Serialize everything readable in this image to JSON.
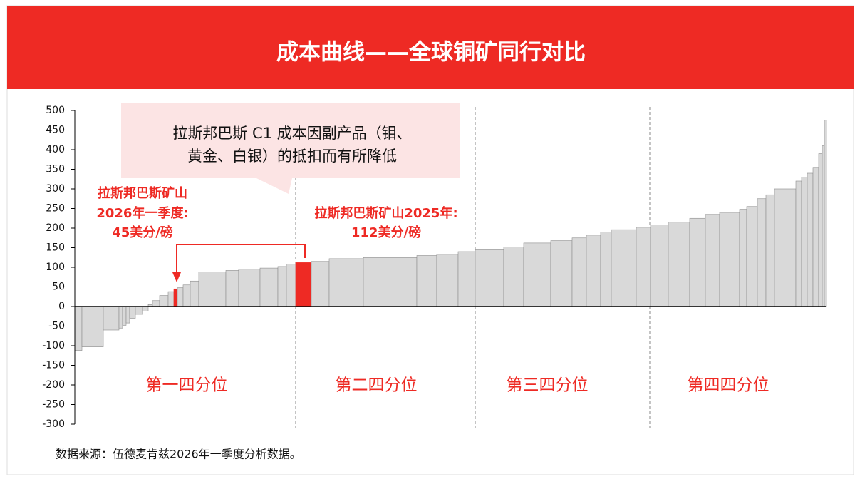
{
  "chart_data": {
    "type": "cost_curve",
    "title": "成本曲线——全球铜矿同行对比",
    "values": [
      -112,
      -103,
      -60,
      -55,
      -48,
      -42,
      -30,
      -20,
      -12,
      5,
      15,
      28,
      38,
      45,
      48,
      55,
      65,
      88,
      92,
      95,
      98,
      102,
      108,
      112,
      115,
      122,
      125,
      130,
      133,
      140,
      145,
      152,
      162,
      168,
      175,
      182,
      190,
      196,
      202,
      208,
      215,
      225,
      235,
      240,
      248,
      255,
      275,
      285,
      300,
      320,
      330,
      340,
      355,
      390,
      410,
      475
    ],
    "widths": [
      10,
      30,
      22,
      5,
      5,
      5,
      8,
      10,
      8,
      6,
      10,
      12,
      8,
      5,
      8,
      10,
      12,
      38,
      18,
      30,
      25,
      12,
      13,
      22,
      25,
      48,
      75,
      28,
      30,
      24,
      40,
      28,
      38,
      30,
      20,
      20,
      15,
      35,
      20,
      25,
      30,
      22,
      20,
      28,
      10,
      15,
      12,
      12,
      30,
      8,
      8,
      8,
      8,
      5,
      3,
      3
    ],
    "color": "#d9d9d9",
    "highlight": [
      13,
      23
    ],
    "highlight_color": "#ee2a24",
    "ylim": [
      -300,
      500
    ],
    "yticks": [
      -300,
      -250,
      -200,
      -150,
      -100,
      -50,
      0,
      50,
      100,
      150,
      200,
      250,
      300,
      350,
      400,
      450,
      500
    ],
    "callout": [
      "拉斯邦巴斯 C1 成本因副产品（钼、",
      "黄金、白银）的抵扣而有所降低"
    ],
    "label_2026": [
      "拉斯邦巴斯矿山",
      "2026年一季度:",
      "45美分/磅"
    ],
    "label_2025": [
      "拉斯邦巴斯矿山2025年:",
      "112美分/磅"
    ],
    "quartiles": [
      "第一四分位",
      "第二四分位",
      "第三四分位",
      "第四四分位"
    ],
    "source": "数据来源：伍德麦肯兹2026年一季度分析数据。"
  }
}
